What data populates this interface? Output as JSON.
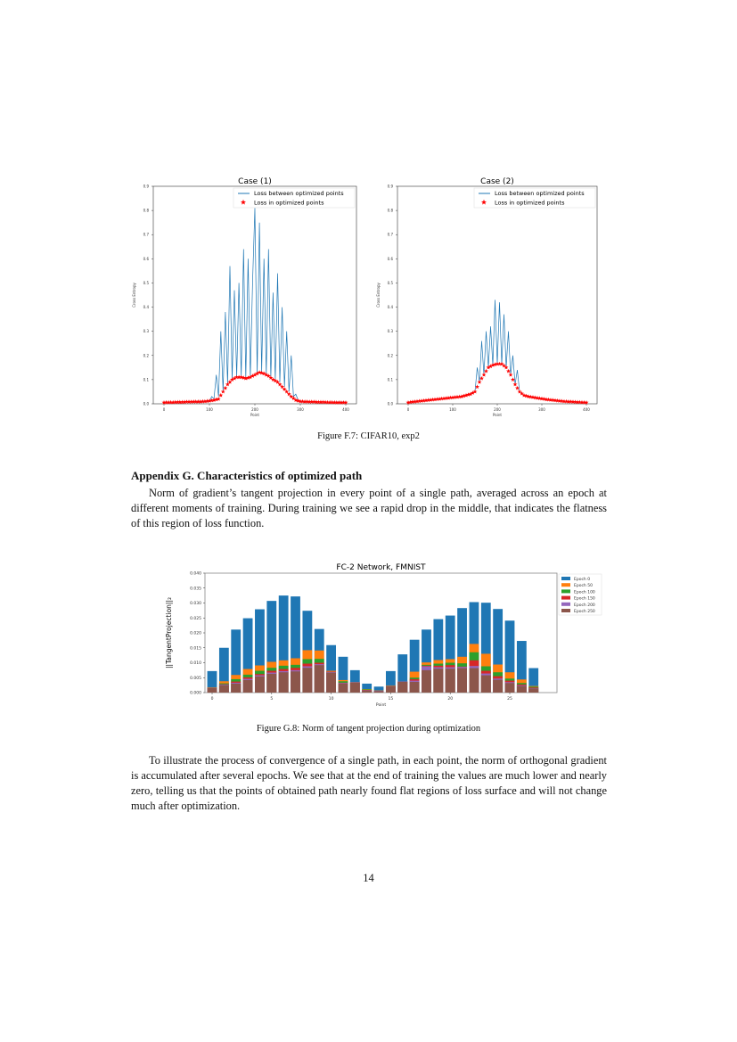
{
  "figure_f7": {
    "caption": "Figure F.7: CIFAR10, exp2"
  },
  "appendix": {
    "heading": "Appendix  G.  Characteristics of optimized path",
    "paragraph1": "Norm of gradient’s tangent projection in every point of a single path, averaged across an epoch at different moments of training. During training we see a rapid drop in the middle, that indicates the flatness of this region of loss function.",
    "paragraph2": "To illustrate the process of convergence of a single path, in each point, the norm of orthogonal gradient is accumulated after several epochs. We see that at the end of training the values are much lower and nearly zero, telling us that the points of obtained path nearly found flat regions of loss surface and will not change much after optimization."
  },
  "figure_g8": {
    "caption": "Figure G.8: Norm of tangent projection during optimization"
  },
  "page_number": "14",
  "chart_data": [
    {
      "type": "line",
      "title": "Case (1)",
      "xlabel": "Point",
      "ylabel": "Cross Entropy",
      "xlim": [
        -10,
        410
      ],
      "ylim": [
        0,
        0.9
      ],
      "xticks": [
        "0",
        "100",
        "200",
        "300",
        "400"
      ],
      "yticks": [
        "0.0",
        "0.1",
        "0.2",
        "0.3",
        "0.4",
        "0.5",
        "0.6",
        "0.7",
        "0.8",
        "0.9"
      ],
      "legend_placement": "top-right",
      "series": [
        {
          "name": "Loss between optimized points",
          "style": "line",
          "color": "#1f77b4",
          "x_step": 5,
          "values": [
            0.008,
            0.008,
            0.008,
            0.008,
            0.008,
            0.008,
            0.008,
            0.008,
            0.008,
            0.008,
            0.008,
            0.008,
            0.008,
            0.008,
            0.008,
            0.008,
            0.008,
            0.008,
            0.008,
            0.008,
            0.01,
            0.03,
            0.02,
            0.12,
            0.03,
            0.3,
            0.05,
            0.38,
            0.08,
            0.57,
            0.1,
            0.47,
            0.11,
            0.5,
            0.11,
            0.64,
            0.105,
            0.6,
            0.11,
            0.5,
            0.81,
            0.12,
            0.75,
            0.13,
            0.6,
            0.12,
            0.64,
            0.11,
            0.46,
            0.1,
            0.54,
            0.09,
            0.4,
            0.07,
            0.3,
            0.05,
            0.2,
            0.03,
            0.04,
            0.015,
            0.008,
            0.008,
            0.008,
            0.008,
            0.008,
            0.008,
            0.008,
            0.008,
            0.008,
            0.008,
            0.008,
            0.008,
            0.008,
            0.008,
            0.008,
            0.008,
            0.008,
            0.008,
            0.008,
            0.008,
            0.008
          ]
        },
        {
          "name": "Loss in optimized points",
          "style": "star",
          "color": "#ff0000",
          "x_step": 10,
          "values": [
            0.005,
            0.006,
            0.006,
            0.007,
            0.007,
            0.008,
            0.008,
            0.009,
            0.009,
            0.01,
            0.012,
            0.015,
            0.02,
            0.05,
            0.08,
            0.1,
            0.11,
            0.11,
            0.105,
            0.11,
            0.12,
            0.13,
            0.125,
            0.115,
            0.1,
            0.09,
            0.07,
            0.05,
            0.03,
            0.015,
            0.01,
            0.009,
            0.008,
            0.008,
            0.007,
            0.007,
            0.006,
            0.006,
            0.005,
            0.005,
            0.005
          ]
        }
      ]
    },
    {
      "type": "line",
      "title": "Case (2)",
      "xlabel": "Point",
      "ylabel": "Cross Entropy",
      "xlim": [
        -10,
        410
      ],
      "ylim": [
        0,
        0.9
      ],
      "xticks": [
        "0",
        "100",
        "200",
        "300",
        "400"
      ],
      "yticks": [
        "0.0",
        "0.1",
        "0.2",
        "0.3",
        "0.4",
        "0.5",
        "0.6",
        "0.7",
        "0.8",
        "0.9"
      ],
      "legend_placement": "top-right",
      "series": [
        {
          "name": "Loss between optimized points",
          "style": "line",
          "color": "#1f77b4",
          "x_step": 5,
          "values": [
            0.005,
            0.006,
            0.008,
            0.009,
            0.01,
            0.011,
            0.012,
            0.013,
            0.014,
            0.015,
            0.016,
            0.017,
            0.018,
            0.019,
            0.02,
            0.021,
            0.022,
            0.023,
            0.024,
            0.025,
            0.026,
            0.027,
            0.028,
            0.029,
            0.03,
            0.032,
            0.035,
            0.037,
            0.04,
            0.045,
            0.05,
            0.15,
            0.09,
            0.26,
            0.12,
            0.3,
            0.15,
            0.32,
            0.16,
            0.43,
            0.165,
            0.42,
            0.165,
            0.37,
            0.15,
            0.3,
            0.12,
            0.2,
            0.08,
            0.14,
            0.05,
            0.04,
            0.035,
            0.032,
            0.03,
            0.028,
            0.027,
            0.025,
            0.024,
            0.022,
            0.021,
            0.02,
            0.018,
            0.017,
            0.016,
            0.015,
            0.014,
            0.013,
            0.012,
            0.011,
            0.01,
            0.0095,
            0.009,
            0.0085,
            0.008,
            0.0075,
            0.007,
            0.0065,
            0.006,
            0.0055,
            0.005
          ]
        },
        {
          "name": "Loss in optimized points",
          "style": "star",
          "color": "#ff0000",
          "x_step": 10,
          "values": [
            0.005,
            0.008,
            0.01,
            0.012,
            0.014,
            0.016,
            0.018,
            0.02,
            0.022,
            0.024,
            0.026,
            0.028,
            0.03,
            0.035,
            0.04,
            0.05,
            0.09,
            0.12,
            0.15,
            0.16,
            0.165,
            0.165,
            0.15,
            0.12,
            0.08,
            0.05,
            0.035,
            0.03,
            0.027,
            0.024,
            0.021,
            0.018,
            0.016,
            0.014,
            0.012,
            0.01,
            0.009,
            0.008,
            0.007,
            0.006,
            0.005
          ]
        }
      ]
    },
    {
      "type": "bar",
      "title": "FC-2 Network, FMNIST",
      "xlabel": "Point",
      "ylabel": "||TangentProjection||₂",
      "ylim": [
        0,
        0.04
      ],
      "yticks": [
        "0.000",
        "0.005",
        "0.010",
        "0.015",
        "0.020",
        "0.025",
        "0.030",
        "0.035",
        "0.040"
      ],
      "xticks": [
        "0",
        "5",
        "10",
        "15",
        "20",
        "25"
      ],
      "categories": [
        0,
        1,
        2,
        3,
        4,
        5,
        6,
        7,
        8,
        9,
        10,
        11,
        12,
        13,
        14,
        15,
        16,
        17,
        18,
        19,
        20,
        21,
        22,
        23,
        24,
        25,
        26,
        27
      ],
      "legend_placement": "outside-right",
      "series": [
        {
          "name": "Epoch 0",
          "color": "#1f77b4",
          "values": [
            0.0072,
            0.015,
            0.0211,
            0.0249,
            0.0279,
            0.0307,
            0.0325,
            0.0322,
            0.0274,
            0.0213,
            0.0159,
            0.012,
            0.0075,
            0.003,
            0.002,
            0.0072,
            0.0128,
            0.0177,
            0.0211,
            0.0246,
            0.0258,
            0.0283,
            0.0303,
            0.0301,
            0.028,
            0.0241,
            0.0173,
            0.0082
          ]
        },
        {
          "name": "Epoch 50",
          "color": "#ff7f0e",
          "values": [
            0.0018,
            0.0038,
            0.0059,
            0.0079,
            0.0091,
            0.0103,
            0.0108,
            0.0115,
            0.0142,
            0.0141,
            0.0073,
            0.0042,
            0.0035,
            0.0012,
            0.0007,
            0.0024,
            0.0037,
            0.007,
            0.0101,
            0.0109,
            0.0112,
            0.012,
            0.0163,
            0.013,
            0.0094,
            0.0068,
            0.0044,
            0.0022
          ]
        },
        {
          "name": "Epoch 100",
          "color": "#2ca02c",
          "values": [
            0.0017,
            0.0031,
            0.0045,
            0.006,
            0.0073,
            0.0083,
            0.009,
            0.0093,
            0.0112,
            0.0113,
            0.007,
            0.0038,
            0.0034,
            0.0011,
            0.0006,
            0.0023,
            0.0037,
            0.005,
            0.0093,
            0.0097,
            0.01,
            0.0098,
            0.0135,
            0.0088,
            0.0068,
            0.0047,
            0.0032,
            0.002
          ]
        },
        {
          "name": "Epoch 150",
          "color": "#d62728",
          "values": [
            0.0016,
            0.0028,
            0.0037,
            0.0051,
            0.0062,
            0.0073,
            0.0079,
            0.0083,
            0.0097,
            0.01,
            0.007,
            0.0033,
            0.0034,
            0.0009,
            0.0006,
            0.0022,
            0.0037,
            0.0045,
            0.009,
            0.009,
            0.0092,
            0.0087,
            0.0108,
            0.0073,
            0.0055,
            0.004,
            0.0027,
            0.0017
          ]
        },
        {
          "name": "Epoch 200",
          "color": "#9467bd",
          "values": [
            0.0016,
            0.0027,
            0.0033,
            0.0046,
            0.0058,
            0.0067,
            0.0072,
            0.0075,
            0.0088,
            0.0095,
            0.0069,
            0.0032,
            0.0034,
            0.0008,
            0.0006,
            0.0022,
            0.0037,
            0.004,
            0.0088,
            0.0085,
            0.0085,
            0.0086,
            0.0089,
            0.0064,
            0.0047,
            0.0035,
            0.0024,
            0.0015
          ]
        },
        {
          "name": "Epoch 250",
          "color": "#8c564b",
          "values": [
            0.0015,
            0.0025,
            0.003,
            0.0042,
            0.0054,
            0.0063,
            0.0068,
            0.0071,
            0.0083,
            0.0092,
            0.0067,
            0.003,
            0.0033,
            0.0007,
            0.0005,
            0.0021,
            0.0036,
            0.0036,
            0.0075,
            0.008,
            0.008,
            0.0082,
            0.0082,
            0.0058,
            0.0043,
            0.0032,
            0.0022,
            0.0014
          ]
        }
      ]
    }
  ]
}
